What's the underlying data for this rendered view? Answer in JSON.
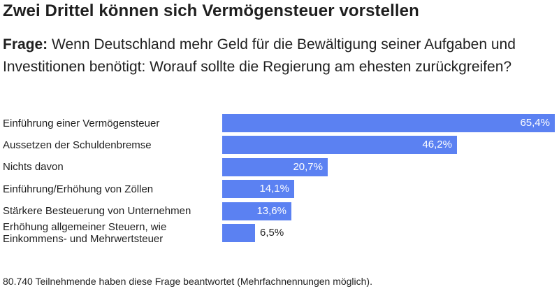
{
  "header": {
    "title": "Zwei Drittel können sich Vermögensteuer vorstellen",
    "question_label": "Frage:",
    "question_text": " Wenn Deutschland mehr Geld für die Bewältigung seiner Aufgaben und Investitionen benötigt: Worauf sollte die Regierung am ehesten zurückgreifen?"
  },
  "chart_data": {
    "type": "bar",
    "orientation": "horizontal",
    "categories": [
      "Einführung einer Vermögensteuer",
      "Aussetzen der Schuldenbremse",
      "Nichts davon",
      "Einführung/Erhöhung von Zöllen",
      "Stärkere Besteuerung von Unternehmen",
      "Erhöhung allgemeiner Steuern, wie\nEinkommens- und Mehrwertsteuer"
    ],
    "values": [
      65.4,
      46.2,
      20.7,
      14.1,
      13.6,
      6.5
    ],
    "value_labels": [
      "65,4%",
      "46,2%",
      "20,7%",
      "14,1%",
      "13,6%",
      "6,5%"
    ],
    "xlim": [
      0,
      65.4
    ],
    "bar_color": "#5b81f2",
    "grid": false
  },
  "footer": {
    "note": "80.740 Teilnehmende haben diese Frage beantwortet (Mehrfachnennungen möglich)."
  }
}
